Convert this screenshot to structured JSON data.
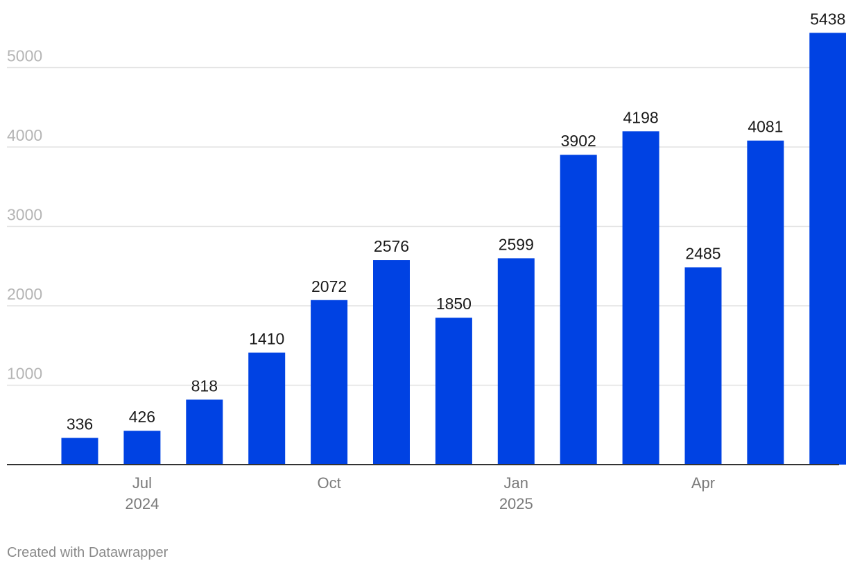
{
  "chart_data": {
    "type": "bar",
    "title": "",
    "xlabel": "",
    "ylabel": "",
    "ylim": [
      0,
      5500
    ],
    "grid": true,
    "bar_color": "#0042e3",
    "grid_color": "#e2e2e2",
    "axis_color": "#333333",
    "yticks": [
      "1000",
      "2000",
      "3000",
      "4000",
      "5000"
    ],
    "ytick_values": [
      1000,
      2000,
      3000,
      4000,
      5000
    ],
    "categories": [
      "2024-06",
      "2024-07",
      "2024-08",
      "2024-09",
      "2024-10",
      "2024-11",
      "2024-12",
      "2025-01",
      "2025-02",
      "2025-03",
      "2025-04",
      "2025-05",
      "2025-06"
    ],
    "values": [
      336,
      426,
      818,
      1410,
      2072,
      2576,
      1850,
      2599,
      3902,
      4198,
      2485,
      4081,
      5438
    ],
    "value_labels": [
      "336",
      "426",
      "818",
      "1410",
      "2072",
      "2576",
      "1850",
      "2599",
      "3902",
      "4198",
      "2485",
      "4081",
      "5438"
    ],
    "xticks": [
      {
        "index": 1,
        "label": "Jul",
        "sublabel": "2024"
      },
      {
        "index": 4,
        "label": "Oct",
        "sublabel": ""
      },
      {
        "index": 7,
        "label": "Jan",
        "sublabel": "2025"
      },
      {
        "index": 10,
        "label": "Apr",
        "sublabel": ""
      }
    ]
  },
  "footer": {
    "credit": "Created with Datawrapper"
  }
}
